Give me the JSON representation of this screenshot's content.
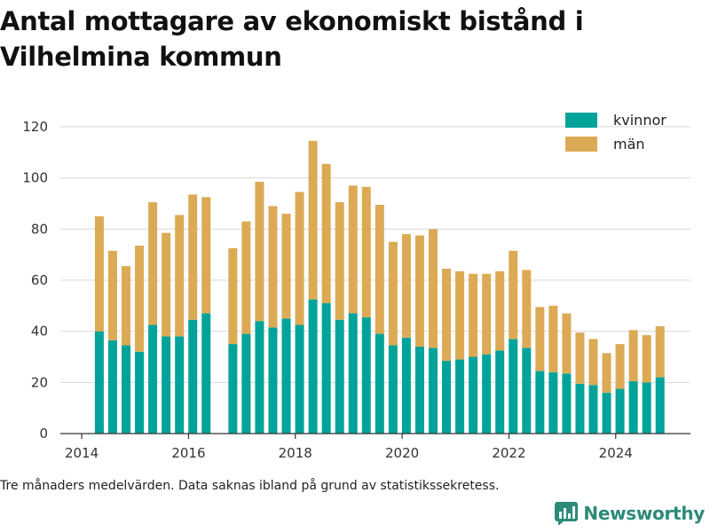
{
  "chart_data": {
    "type": "bar",
    "stacked": true,
    "title": "Antal mottagare av ekonomiskt bistånd i Vilhelmina kommun",
    "footnote": "Tre månaders medelvärden. Data saknas ibland på grund av statistikssekretess.",
    "x_tick_labels": [
      "2014",
      "2016",
      "2018",
      "2020",
      "2022",
      "2024"
    ],
    "y_tick_labels": [
      "0",
      "20",
      "40",
      "60",
      "80",
      "100",
      "120"
    ],
    "xlim": [
      2013.6,
      2025.4
    ],
    "ylim": [
      0,
      120
    ],
    "grid": "horizontal",
    "legend_position": "top-right",
    "x": [
      2014.33,
      2014.58,
      2014.83,
      2015.08,
      2015.33,
      2015.58,
      2015.83,
      2016.08,
      2016.33,
      2016.83,
      2017.08,
      2017.33,
      2017.58,
      2017.83,
      2018.08,
      2018.33,
      2018.58,
      2018.83,
      2019.08,
      2019.33,
      2019.58,
      2019.83,
      2020.08,
      2020.33,
      2020.58,
      2020.83,
      2021.08,
      2021.33,
      2021.58,
      2021.83,
      2022.08,
      2022.33,
      2022.58,
      2022.83,
      2023.08,
      2023.33,
      2023.58,
      2023.83,
      2024.08,
      2024.33,
      2024.58,
      2024.83
    ],
    "series": [
      {
        "name": "kvinnor",
        "color": "#00a39a",
        "values": [
          40,
          36.5,
          34.5,
          32,
          42.5,
          38,
          38,
          44.5,
          47,
          35,
          39,
          44,
          41.5,
          45,
          42.5,
          52.5,
          51,
          44.5,
          47,
          45.5,
          39,
          34.5,
          37.5,
          34,
          33.5,
          28.5,
          29,
          30,
          31,
          32.5,
          37,
          33.5,
          24.5,
          24,
          23.5,
          19.5,
          19,
          16,
          17.5,
          20.5,
          20,
          22
        ]
      },
      {
        "name": "män",
        "color": "#dcaa55",
        "values": [
          45,
          35,
          31,
          41.5,
          48,
          40.5,
          47.5,
          49,
          45.5,
          37.5,
          44,
          54.5,
          47.5,
          41,
          52,
          62,
          54.5,
          46,
          50,
          51,
          50.5,
          40.5,
          40.5,
          43.5,
          46.5,
          36,
          34.5,
          32.5,
          31.5,
          31,
          34.5,
          30.5,
          25,
          26,
          23.5,
          20,
          18,
          15.5,
          17.5,
          20,
          18.5,
          20
        ]
      }
    ]
  },
  "brand": {
    "name": "Newsworthy"
  }
}
